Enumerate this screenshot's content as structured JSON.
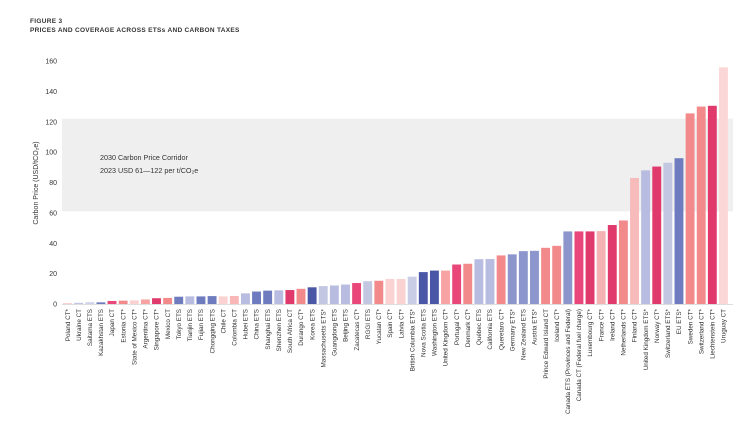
{
  "figure_label": "FIGURE 3",
  "figure_title": "PRICES AND COVERAGE ACROSS ETSs AND CARBON TAXES",
  "chart_data": {
    "type": "bar",
    "title": "PRICES AND COVERAGE ACROSS ETSs AND CARBON TAXES",
    "xlabel": "",
    "ylabel": "Carbon Price (USD/tCO₂e)",
    "ylim": [
      0,
      160
    ],
    "yticks": [
      0,
      20,
      40,
      60,
      80,
      100,
      120,
      140,
      160
    ],
    "grid": false,
    "corridor": {
      "range": [
        61,
        122
      ],
      "line1": "2030 Carbon Price Corridor",
      "line2": "2023 USD 61—122 per t/CO₂e"
    },
    "categories": [
      "Poland CT*",
      "Ukraine CT",
      "Saitama ETS",
      "Kazakhstan ETS",
      "Japan CT",
      "Estonia CT*",
      "State of Mexico CT*",
      "Argentina CT*",
      "Singapore CT*",
      "Mexico CT",
      "Tokyo ETS",
      "Tianjin ETS",
      "Fujian ETS",
      "Chongqing ETS",
      "Chile CT",
      "Colombia CT",
      "Hubei ETS",
      "China ETS",
      "Shanghai ETS",
      "Shenzhen ETS",
      "South Africa CT",
      "Durango CT*",
      "Korea ETS",
      "Massachusetts ETS*",
      "Guangdong ETS",
      "Beijing ETS",
      "Zacatecas CT*",
      "RGGI ETS",
      "Yucatan CT*",
      "Spain CT*",
      "Latvia CT*",
      "British Columbia ETS*",
      "Nova Scotia ETS",
      "Washington ETS",
      "United Kingdom CT*",
      "Portugal CT*",
      "Denmark CT*",
      "Québec ETS",
      "California ETS",
      "Queretaro CT*",
      "Germany ETS*",
      "New Zealand ETS",
      "Austria ETS*",
      "Prince Edward Island CT",
      "Iceland CT*",
      "Canada ETS (Provinces and Federal)",
      "Canada CT (Federal fuel charge)",
      "Luxembourg CT*",
      "France CT*",
      "Ireland CT*",
      "Netherlands CT*",
      "Finland CT*",
      "United Kingdom ETS*",
      "Norway CT*",
      "Switzerland ETS*",
      "EU ETS*",
      "Sweden CT*",
      "Switzerland CT*",
      "Liechtenstein CT*",
      "Uruguay CT"
    ],
    "values": [
      0.1,
      0.8,
      1.2,
      1.1,
      2.0,
      2.2,
      2.4,
      3.0,
      3.8,
      4.0,
      4.8,
      5.0,
      5.0,
      5.2,
      5.0,
      5.3,
      7.0,
      8.2,
      8.8,
      9.0,
      9.2,
      10.0,
      11.0,
      11.8,
      12.2,
      12.8,
      13.8,
      15.0,
      15.3,
      16.5,
      16.5,
      18.0,
      21.0,
      22.0,
      22.0,
      26.0,
      26.5,
      29.5,
      29.6,
      32.0,
      32.7,
      34.8,
      35.0,
      37.0,
      38.3,
      47.8,
      47.8,
      47.8,
      48.0,
      52.0,
      55.0,
      83.0,
      88.0,
      90.5,
      93.0,
      96.0,
      125.5,
      130.0,
      130.5,
      155.8
    ],
    "colors": [
      "#f5b2b2",
      "#c3c7e2",
      "#cfd3ea",
      "#6e7cbf",
      "#e9477a",
      "#f28a8c",
      "#fbd2d2",
      "#f7a3a3",
      "#e03a6c",
      "#f28a8c",
      "#6e7cbf",
      "#b7bce0",
      "#6e7cbf",
      "#6e7cbf",
      "#fbd2d2",
      "#f8b6b6",
      "#b7bce0",
      "#6e7cbf",
      "#6e7cbf",
      "#b7bce0",
      "#e03a6c",
      "#f28a8c",
      "#4a56a6",
      "#c3c7e2",
      "#b7bce0",
      "#b7bce0",
      "#e9477a",
      "#c3c7e2",
      "#f28a8c",
      "#fbd2d2",
      "#fbd2d2",
      "#c9cde6",
      "#4a56a6",
      "#4a56a6",
      "#f7a3a3",
      "#e9477a",
      "#f28a8c",
      "#b7bce0",
      "#b7bce0",
      "#f28a8c",
      "#8c96cc",
      "#8c96cc",
      "#8c96cc",
      "#f28a8c",
      "#f28a8c",
      "#8c96cc",
      "#e9477a",
      "#e03a6c",
      "#f5b2b2",
      "#e03a6c",
      "#f28a8c",
      "#f7bbbb",
      "#b7bce0",
      "#e03a6c",
      "#c3c7e2",
      "#6e7cbf",
      "#f28a8c",
      "#f28a8c",
      "#e03a6c",
      "#fbd7d7"
    ]
  }
}
